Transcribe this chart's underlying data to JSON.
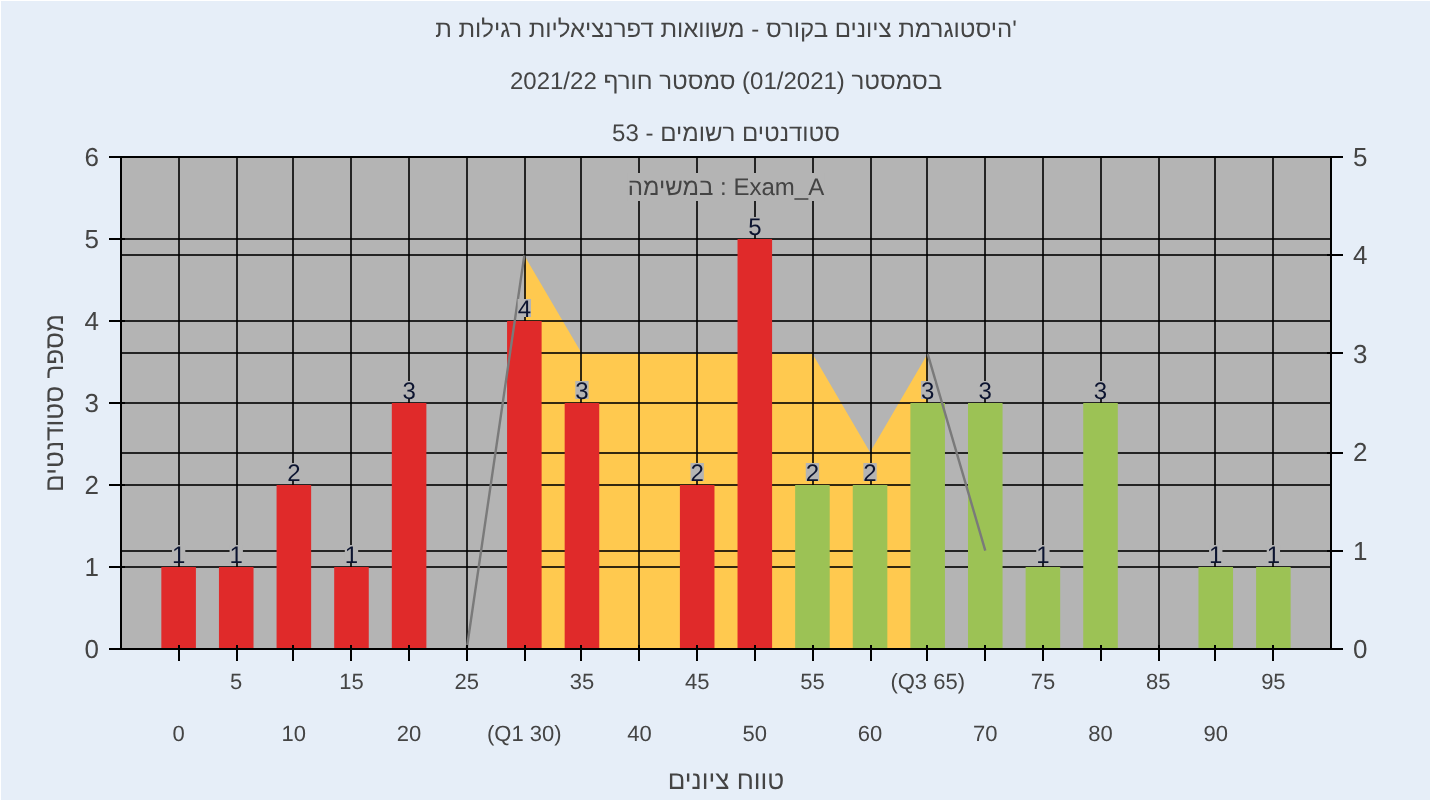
{
  "chart_data": {
    "type": "bar",
    "title": "היסטוגרמת ציונים בקורס - משוואות דפרנציאליות רגילות ת'",
    "subtitle": [
      "בסמסטר (01/2021) סמסטר חורף 2021/22",
      "סטודנטים רשומים - 53"
    ],
    "xlabel": "טווח ציונים",
    "ylabel": "מספר סטודנטים",
    "annotations": [
      "במשימה : Exam_A"
    ],
    "categories": [
      "0",
      "5",
      "10",
      "15",
      "20",
      "25",
      "(Q1 30)",
      "35",
      "40",
      "45",
      "50",
      "55",
      "60",
      "(Q3 65)",
      "70",
      "75",
      "80",
      "85",
      "90",
      "95"
    ],
    "series": [
      {
        "colors": [
          "#e02a2a",
          "#e02a2a",
          "#e02a2a",
          "#e02a2a",
          "#e02a2a",
          "#e02a2a",
          "#e02a2a",
          "#e02a2a",
          "#e02a2a",
          "#e02a2a",
          "#e02a2a",
          "#9cc255",
          "#9cc255",
          "#9cc255",
          "#9cc255",
          "#9cc255",
          "#9cc255",
          "#9cc255",
          "#9cc255",
          "#9cc255"
        ],
        "values": [
          1,
          1,
          2,
          1,
          3,
          null,
          4,
          3,
          null,
          2,
          5,
          2,
          2,
          3,
          3,
          1,
          3,
          null,
          1,
          1
        ],
        "value_labels": [
          "1",
          "1",
          "2",
          "1",
          "3",
          null,
          "4",
          "3",
          null,
          "2",
          "5",
          "2",
          "2",
          "3",
          "3",
          "1",
          "3",
          null,
          "1",
          "1"
        ]
      },
      {
        "type": "area",
        "axis": "y2",
        "color": "#ffc94f",
        "values": [
          null,
          null,
          null,
          null,
          null,
          null,
          4,
          3,
          3,
          3,
          null,
          3,
          2,
          3,
          null,
          null,
          null,
          null,
          null,
          null
        ]
      },
      {
        "type": "line",
        "axis": "y2",
        "color": "#7a7a7a",
        "values": [
          null,
          null,
          null,
          null,
          null,
          0,
          4,
          null,
          null,
          null,
          null,
          null,
          null,
          3,
          1,
          null,
          null,
          null,
          null,
          null
        ]
      }
    ],
    "ylim": [
      0,
      6
    ],
    "yticks": [
      0,
      1,
      2,
      3,
      4,
      5,
      6
    ],
    "y2lim": [
      0,
      5
    ],
    "y2ticks": [
      0,
      1,
      2,
      3,
      4,
      5
    ],
    "grid": true
  }
}
